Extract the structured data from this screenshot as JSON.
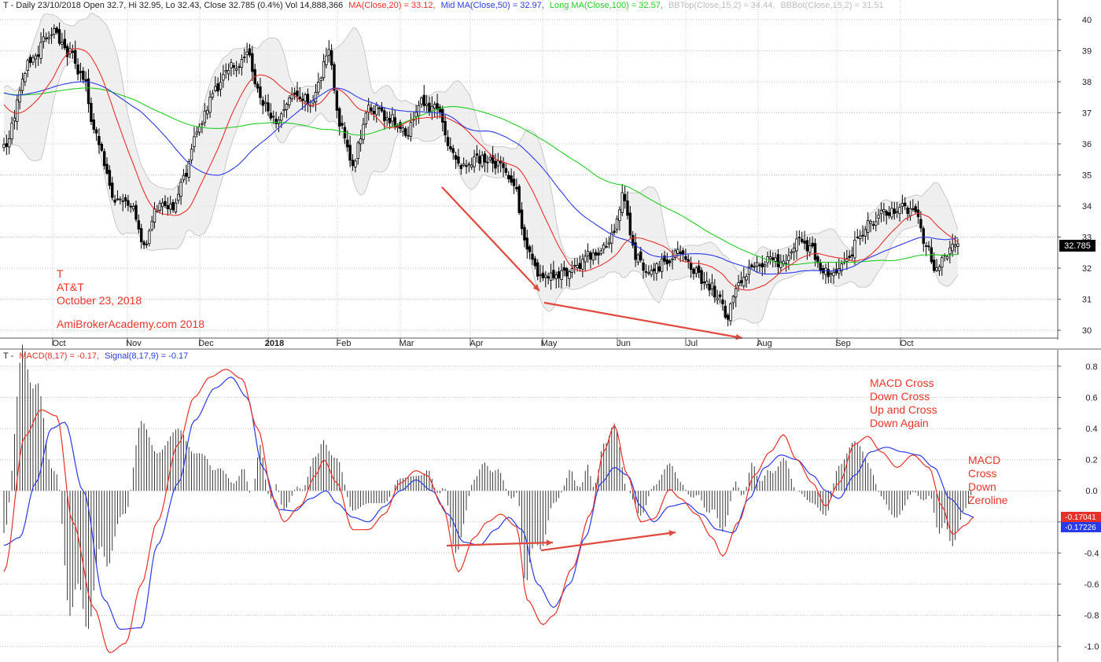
{
  "colors": {
    "ma20": "#e8302a",
    "ma50": "#2a3ae8",
    "ma100": "#22cc22",
    "bband": "#bbbbbb",
    "macd": "#e8302a",
    "signal": "#2a3ae8",
    "hist": "#222222",
    "arrow": "#e04a3e",
    "annotation": "#e8352a"
  },
  "price_header": {
    "prefix": "T - Daily 23/10/2018 Open 32.7, Hi 32.95, Lo 32.43, Close 32.785 (0.4%) Vol 14,888,366",
    "ma20": "MA(Close,20) = 33.12,",
    "ma50": "Mid MA(Close,50) = 32.97,",
    "ma100": "Long MA(Close,100) = 32.57,",
    "bbtop": "BBTop(Close,15,2) = 34.44,",
    "bbbot": "BBBot(Close,15,2) = 31.51"
  },
  "macd_header": {
    "prefix": "T -",
    "macd": "MACD(8,17) = -0.17,",
    "signal": "Signal(8,17,9) = -0.17"
  },
  "annotations": {
    "stock": [
      "T",
      "AT&T",
      "October 23, 2018"
    ],
    "site": "AmiBrokerAcademy.com 2018",
    "macd_cross": [
      "MACD Cross",
      "Down Cross",
      "Up and Cross",
      "Down Again"
    ],
    "zeroline": [
      "MACD",
      "Cross",
      "Down",
      "Zeroline"
    ]
  },
  "chart_data": [
    {
      "type": "candlestick",
      "title": "T - Daily 23/10/2018",
      "ylim": [
        29.8,
        40.2
      ],
      "y_ticks": [
        30,
        31,
        32,
        33,
        34,
        35,
        36,
        37,
        38,
        39,
        40
      ],
      "x_labels": [
        "Oct",
        "Nov",
        "Dec",
        "2018",
        "Feb",
        "Mar",
        "Apr",
        "May",
        "Jun",
        "Jul",
        "Aug",
        "Sep",
        "Oct"
      ],
      "last_price_label": "32.785",
      "key_closes": [
        [
          0,
          36.0
        ],
        [
          10,
          38.6
        ],
        [
          18,
          39.6
        ],
        [
          25,
          38.9
        ],
        [
          30,
          38.1
        ],
        [
          34,
          36.5
        ],
        [
          42,
          34.2
        ],
        [
          48,
          34.0
        ],
        [
          53,
          32.8
        ],
        [
          58,
          34.0
        ],
        [
          63,
          33.9
        ],
        [
          68,
          34.9
        ],
        [
          74,
          36.6
        ],
        [
          80,
          37.8
        ],
        [
          87,
          38.5
        ],
        [
          92,
          38.8
        ],
        [
          98,
          37.3
        ],
        [
          103,
          36.7
        ],
        [
          110,
          37.6
        ],
        [
          117,
          37.4
        ],
        [
          123,
          39.0
        ],
        [
          127,
          36.6
        ],
        [
          132,
          35.4
        ],
        [
          138,
          37.2
        ],
        [
          146,
          36.8
        ],
        [
          152,
          36.3
        ],
        [
          158,
          37.3
        ],
        [
          164,
          37.1
        ],
        [
          168,
          36.1
        ],
        [
          173,
          35.2
        ],
        [
          180,
          35.5
        ],
        [
          187,
          35.3
        ],
        [
          193,
          34.8
        ],
        [
          197,
          32.8
        ],
        [
          202,
          31.8
        ],
        [
          209,
          31.7
        ],
        [
          216,
          32.0
        ],
        [
          221,
          32.4
        ],
        [
          226,
          32.6
        ],
        [
          231,
          33.1
        ],
        [
          234,
          34.3
        ],
        [
          239,
          32.4
        ],
        [
          244,
          31.9
        ],
        [
          251,
          32.2
        ],
        [
          256,
          32.5
        ],
        [
          261,
          31.9
        ],
        [
          266,
          31.5
        ],
        [
          271,
          31.1
        ],
        [
          274,
          30.4
        ],
        [
          277,
          31.5
        ],
        [
          283,
          32.0
        ],
        [
          290,
          32.3
        ],
        [
          295,
          32.1
        ],
        [
          300,
          32.9
        ],
        [
          305,
          32.7
        ],
        [
          309,
          32.0
        ],
        [
          314,
          31.8
        ],
        [
          319,
          32.3
        ],
        [
          324,
          33.0
        ],
        [
          328,
          33.5
        ],
        [
          334,
          33.8
        ],
        [
          340,
          34.0
        ],
        [
          345,
          33.8
        ],
        [
          349,
          32.8
        ],
        [
          352,
          32.0
        ],
        [
          356,
          32.4
        ],
        [
          361,
          32.785
        ]
      ],
      "series": [
        {
          "name": "MA(Close,20)",
          "last": 33.12
        },
        {
          "name": "Mid MA(Close,50)",
          "last": 32.97
        },
        {
          "name": "Long MA(Close,100)",
          "last": 32.57
        },
        {
          "name": "BBTop(Close,15,2)",
          "last": 34.44
        },
        {
          "name": "BBBot(Close,15,2)",
          "last": 31.51
        }
      ]
    },
    {
      "type": "line",
      "title": "T - MACD(8,17)",
      "ylim": [
        -1.1,
        0.9
      ],
      "y_ticks": [
        -1.0,
        -0.8,
        -0.6,
        -0.4,
        -0.2,
        0.0,
        0.2,
        0.4,
        0.6,
        0.8
      ],
      "y_tick_labels": [
        "-1.0",
        "-0.8",
        "-0.6",
        "-0.4",
        "-0.2",
        "0.0",
        "0.2",
        "0.4",
        "0.6",
        "0.8"
      ],
      "macd_label": "-0.17041",
      "signal_label": "-0.17226",
      "series": [
        {
          "name": "MACD(8,17)",
          "last": -0.17,
          "keys": [
            [
              0,
              -0.52
            ],
            [
              8,
              0.35
            ],
            [
              14,
              0.52
            ],
            [
              20,
              0.48
            ],
            [
              26,
              -0.2
            ],
            [
              34,
              -0.75
            ],
            [
              40,
              -1.04
            ],
            [
              46,
              -0.98
            ],
            [
              52,
              -0.6
            ],
            [
              58,
              -0.2
            ],
            [
              66,
              0.3
            ],
            [
              72,
              0.6
            ],
            [
              78,
              0.73
            ],
            [
              84,
              0.78
            ],
            [
              90,
              0.72
            ],
            [
              96,
              0.4
            ],
            [
              102,
              -0.05
            ],
            [
              106,
              -0.2
            ],
            [
              112,
              -0.1
            ],
            [
              118,
              0.1
            ],
            [
              121,
              0.2
            ],
            [
              126,
              0.05
            ],
            [
              132,
              -0.25
            ],
            [
              138,
              -0.25
            ],
            [
              144,
              -0.15
            ],
            [
              150,
              0.05
            ],
            [
              156,
              0.13
            ],
            [
              160,
              0.1
            ],
            [
              166,
              -0.1
            ],
            [
              172,
              -0.52
            ],
            [
              178,
              -0.3
            ],
            [
              183,
              -0.2
            ],
            [
              188,
              -0.15
            ],
            [
              194,
              -0.23
            ],
            [
              198,
              -0.7
            ],
            [
              204,
              -0.86
            ],
            [
              208,
              -0.8
            ],
            [
              215,
              -0.5
            ],
            [
              222,
              -0.15
            ],
            [
              227,
              0.25
            ],
            [
              231,
              0.42
            ],
            [
              236,
              0.1
            ],
            [
              241,
              -0.2
            ],
            [
              246,
              -0.18
            ],
            [
              252,
              0.01
            ],
            [
              256,
              -0.05
            ],
            [
              262,
              -0.15
            ],
            [
              268,
              -0.3
            ],
            [
              272,
              -0.42
            ],
            [
              278,
              -0.2
            ],
            [
              284,
              0.1
            ],
            [
              290,
              0.25
            ],
            [
              295,
              0.36
            ],
            [
              300,
              0.2
            ],
            [
              306,
              0.05
            ],
            [
              311,
              -0.1
            ],
            [
              316,
              0.05
            ],
            [
              322,
              0.3
            ],
            [
              327,
              0.35
            ],
            [
              332,
              0.25
            ],
            [
              338,
              0.15
            ],
            [
              344,
              0.23
            ],
            [
              350,
              0.15
            ],
            [
              355,
              -0.1
            ],
            [
              359,
              -0.28
            ],
            [
              364,
              -0.22
            ],
            [
              367,
              -0.17
            ]
          ]
        },
        {
          "name": "Signal(8,17,9)",
          "last": -0.17,
          "keys": [
            [
              0,
              -0.35
            ],
            [
              6,
              -0.3
            ],
            [
              12,
              0.05
            ],
            [
              18,
              0.4
            ],
            [
              23,
              0.44
            ],
            [
              30,
              0.0
            ],
            [
              38,
              -0.7
            ],
            [
              44,
              -0.89
            ],
            [
              52,
              -0.88
            ],
            [
              58,
              -0.35
            ],
            [
              66,
              0.05
            ],
            [
              72,
              0.45
            ],
            [
              80,
              0.66
            ],
            [
              86,
              0.73
            ],
            [
              92,
              0.6
            ],
            [
              98,
              0.15
            ],
            [
              104,
              -0.12
            ],
            [
              110,
              -0.13
            ],
            [
              116,
              -0.05
            ],
            [
              122,
              0.0
            ],
            [
              126,
              -0.08
            ],
            [
              132,
              -0.17
            ],
            [
              138,
              -0.2
            ],
            [
              144,
              -0.1
            ],
            [
              150,
              0.0
            ],
            [
              156,
              0.07
            ],
            [
              162,
              0.0
            ],
            [
              168,
              -0.15
            ],
            [
              174,
              -0.33
            ],
            [
              180,
              -0.35
            ],
            [
              186,
              -0.25
            ],
            [
              191,
              -0.17
            ],
            [
              196,
              -0.25
            ],
            [
              202,
              -0.6
            ],
            [
              208,
              -0.75
            ],
            [
              214,
              -0.6
            ],
            [
              220,
              -0.3
            ],
            [
              226,
              0.05
            ],
            [
              231,
              0.15
            ],
            [
              236,
              0.1
            ],
            [
              241,
              -0.1
            ],
            [
              246,
              -0.2
            ],
            [
              252,
              -0.1
            ],
            [
              258,
              -0.08
            ],
            [
              264,
              -0.15
            ],
            [
              270,
              -0.25
            ],
            [
              276,
              -0.27
            ],
            [
              282,
              -0.05
            ],
            [
              288,
              0.15
            ],
            [
              294,
              0.23
            ],
            [
              300,
              0.2
            ],
            [
              306,
              0.1
            ],
            [
              311,
              0.0
            ],
            [
              316,
              -0.05
            ],
            [
              322,
              0.1
            ],
            [
              328,
              0.25
            ],
            [
              334,
              0.28
            ],
            [
              340,
              0.25
            ],
            [
              346,
              0.23
            ],
            [
              352,
              0.15
            ],
            [
              358,
              -0.05
            ],
            [
              364,
              -0.15
            ],
            [
              367,
              -0.17
            ]
          ]
        }
      ]
    }
  ]
}
